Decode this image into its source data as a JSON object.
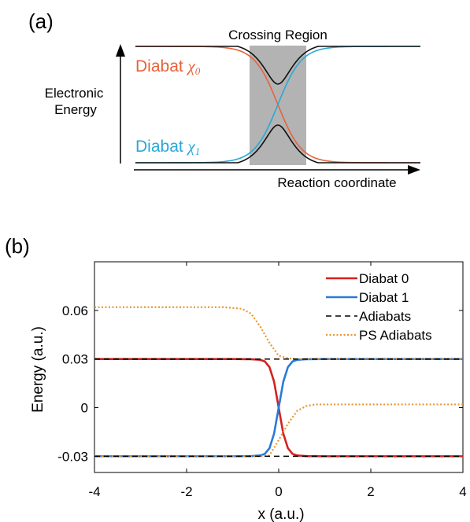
{
  "panel_a": {
    "label": "(a)",
    "crossing_region_label": "Crossing Region",
    "y_axis_label_line1": "Electronic",
    "y_axis_label_line2": "Energy",
    "x_axis_label": "Reaction coordinate",
    "diabat0_label": "Diabat ",
    "diabat0_symbol": "χ",
    "diabat0_subscript": "0",
    "diabat1_label": "Diabat ",
    "diabat1_symbol": "χ",
    "diabat1_subscript": "1",
    "colors": {
      "diabat0": "#e8623a",
      "diabat1": "#2aa8d8",
      "adiabat": "#111111",
      "region": "#b3b3b3"
    }
  },
  "panel_b": {
    "label": "(b)"
  },
  "chart_data": {
    "type": "line",
    "xlabel": "x (a.u.)",
    "ylabel": "Energy (a.u.)",
    "xlim": [
      -4,
      4
    ],
    "ylim": [
      -0.04,
      0.09
    ],
    "xticks": [
      -4,
      -2,
      0,
      2,
      4
    ],
    "xtick_labels": [
      "-4",
      "-2",
      "0",
      "2",
      "4"
    ],
    "yticks": [
      -0.03,
      0,
      0.03,
      0.06
    ],
    "ytick_labels": [
      "-0.03",
      "0",
      "0.03",
      "0.06"
    ],
    "grid": false,
    "legend_position": "top-right",
    "series": [
      {
        "name": "Diabat 0",
        "style": "solid",
        "color": "#d62020",
        "x": [
          -4,
          -1,
          -0.6,
          -0.4,
          -0.3,
          -0.2,
          -0.1,
          0,
          0.1,
          0.2,
          0.3,
          0.4,
          0.6,
          1,
          4
        ],
        "y": [
          0.03,
          0.03,
          0.0299,
          0.0295,
          0.0285,
          0.025,
          0.016,
          0,
          -0.016,
          -0.025,
          -0.0285,
          -0.0295,
          -0.0299,
          -0.03,
          -0.03
        ]
      },
      {
        "name": "Diabat 1",
        "style": "solid",
        "color": "#2a7ad8",
        "x": [
          -4,
          -1,
          -0.6,
          -0.4,
          -0.3,
          -0.2,
          -0.1,
          0,
          0.1,
          0.2,
          0.3,
          0.4,
          0.6,
          1,
          4
        ],
        "y": [
          -0.03,
          -0.03,
          -0.0299,
          -0.0295,
          -0.0285,
          -0.025,
          -0.016,
          0,
          0.016,
          0.025,
          0.0285,
          0.0295,
          0.0299,
          0.03,
          0.03
        ]
      },
      {
        "name": "Adiabats",
        "style": "dashed",
        "color": "#000000",
        "x": [
          -4,
          4
        ],
        "y": [
          0.03,
          0.03
        ],
        "y_lower": [
          -0.03,
          -0.03
        ]
      },
      {
        "name": "PS Adiabats",
        "style": "dotted",
        "color": "#e89530",
        "x": [
          -4,
          -1.2,
          -0.8,
          -0.6,
          -0.4,
          -0.2,
          0,
          0.2,
          0.4,
          0.6,
          0.8,
          1.2,
          4
        ],
        "y": [
          0.062,
          0.062,
          0.061,
          0.058,
          0.05,
          0.04,
          0.032,
          0.0305,
          0.03,
          0.03,
          0.03,
          0.03,
          0.03
        ],
        "y_lower": [
          -0.03,
          -0.03,
          -0.03,
          -0.03,
          -0.03,
          -0.0295,
          -0.02,
          -0.01,
          -0.002,
          0.001,
          0.002,
          0.002,
          0.002
        ]
      }
    ]
  }
}
